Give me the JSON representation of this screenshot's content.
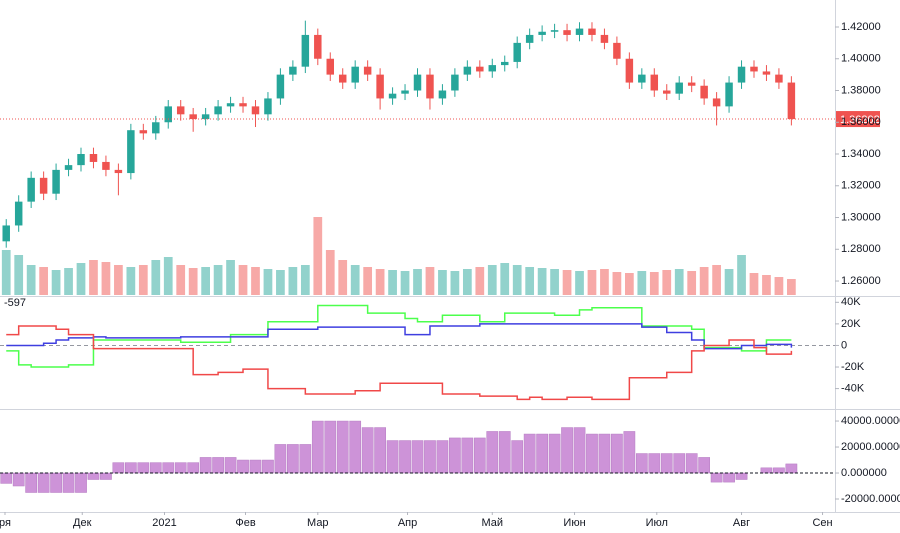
{
  "chart_data": [
    {
      "type": "candlestick",
      "open": [
        1.285,
        1.295,
        1.31,
        1.325,
        1.315,
        1.33,
        1.333,
        1.34,
        1.335,
        1.33,
        1.328,
        1.355,
        1.353,
        1.36,
        1.37,
        1.365,
        1.362,
        1.365,
        1.37,
        1.372,
        1.37,
        1.365,
        1.375,
        1.39,
        1.395,
        1.415,
        1.4,
        1.39,
        1.385,
        1.395,
        1.39,
        1.375,
        1.378,
        1.38,
        1.39,
        1.375,
        1.38,
        1.39,
        1.395,
        1.392,
        1.396,
        1.398,
        1.41,
        1.415,
        1.417,
        1.418,
        1.415,
        1.419,
        1.415,
        1.41,
        1.4,
        1.385,
        1.39,
        1.38,
        1.378,
        1.385,
        1.383,
        1.375,
        1.37,
        1.385,
        1.395,
        1.392,
        1.39,
        1.385
      ],
      "high": [
        1.299,
        1.314,
        1.329,
        1.329,
        1.334,
        1.337,
        1.344,
        1.344,
        1.339,
        1.334,
        1.359,
        1.359,
        1.364,
        1.374,
        1.374,
        1.369,
        1.369,
        1.374,
        1.376,
        1.376,
        1.374,
        1.379,
        1.394,
        1.399,
        1.424,
        1.419,
        1.404,
        1.394,
        1.399,
        1.399,
        1.394,
        1.382,
        1.384,
        1.394,
        1.394,
        1.384,
        1.394,
        1.399,
        1.399,
        1.4,
        1.402,
        1.414,
        1.419,
        1.421,
        1.422,
        1.422,
        1.423,
        1.423,
        1.419,
        1.414,
        1.404,
        1.394,
        1.394,
        1.384,
        1.389,
        1.389,
        1.387,
        1.379,
        1.389,
        1.399,
        1.399,
        1.396,
        1.394,
        1.389
      ],
      "low": [
        1.281,
        1.291,
        1.306,
        1.311,
        1.311,
        1.326,
        1.329,
        1.331,
        1.326,
        1.314,
        1.324,
        1.349,
        1.349,
        1.356,
        1.361,
        1.354,
        1.358,
        1.361,
        1.366,
        1.366,
        1.357,
        1.361,
        1.371,
        1.386,
        1.391,
        1.396,
        1.386,
        1.381,
        1.381,
        1.386,
        1.368,
        1.371,
        1.374,
        1.376,
        1.368,
        1.371,
        1.376,
        1.386,
        1.388,
        1.388,
        1.392,
        1.394,
        1.406,
        1.411,
        1.413,
        1.411,
        1.411,
        1.411,
        1.406,
        1.396,
        1.381,
        1.381,
        1.376,
        1.374,
        1.374,
        1.379,
        1.371,
        1.358,
        1.366,
        1.381,
        1.388,
        1.386,
        1.381,
        1.358
      ],
      "close": [
        1.295,
        1.31,
        1.325,
        1.315,
        1.33,
        1.333,
        1.34,
        1.335,
        1.33,
        1.328,
        1.355,
        1.353,
        1.36,
        1.37,
        1.365,
        1.362,
        1.365,
        1.37,
        1.372,
        1.37,
        1.365,
        1.375,
        1.39,
        1.395,
        1.415,
        1.4,
        1.39,
        1.385,
        1.395,
        1.39,
        1.375,
        1.378,
        1.38,
        1.39,
        1.375,
        1.38,
        1.39,
        1.395,
        1.392,
        1.396,
        1.398,
        1.41,
        1.415,
        1.417,
        1.418,
        1.415,
        1.419,
        1.415,
        1.41,
        1.4,
        1.385,
        1.39,
        1.38,
        1.378,
        1.385,
        1.383,
        1.375,
        1.37,
        1.385,
        1.395,
        1.392,
        1.39,
        1.385,
        1.362
      ],
      "volume": [
        45,
        40,
        30,
        28,
        25,
        27,
        32,
        35,
        33,
        30,
        28,
        30,
        35,
        38,
        30,
        27,
        28,
        30,
        35,
        30,
        28,
        26,
        25,
        28,
        30,
        78,
        45,
        35,
        30,
        28,
        26,
        25,
        24,
        26,
        28,
        25,
        24,
        26,
        28,
        30,
        32,
        30,
        28,
        27,
        26,
        25,
        24,
        25,
        26,
        23,
        22,
        24,
        23,
        25,
        26,
        24,
        28,
        30,
        26,
        40,
        22,
        20,
        18,
        16
      ],
      "volume_lim": [
        0,
        100
      ],
      "up_color": "#26a69a",
      "down_color": "#ef5350",
      "last_price": 1.36202,
      "xlim": [
        0,
        67
      ],
      "xticks": [
        {
          "value": 0.4,
          "label": "ря"
        },
        {
          "value": 6.6,
          "label": "Дек"
        },
        {
          "value": 13.2,
          "label": "2021"
        },
        {
          "value": 19.7,
          "label": "Фев"
        },
        {
          "value": 25.5,
          "label": "Мар"
        },
        {
          "value": 32.7,
          "label": "Апр"
        },
        {
          "value": 39.5,
          "label": "Май"
        },
        {
          "value": 46.1,
          "label": "Июн"
        },
        {
          "value": 52.7,
          "label": "Июл"
        },
        {
          "value": 59.5,
          "label": "Авг"
        },
        {
          "value": 66.0,
          "label": "Сен"
        }
      ],
      "ylim": [
        1.2512,
        1.437
      ],
      "yticks": [
        {
          "value": 1.26,
          "label": "1.26000"
        },
        {
          "value": 1.28,
          "label": "1.28000"
        },
        {
          "value": 1.3,
          "label": "1.30000"
        },
        {
          "value": 1.32,
          "label": "1.32000"
        },
        {
          "value": 1.34,
          "label": "1.34000"
        },
        {
          "value": 1.36,
          "label": "1.36000"
        },
        {
          "value": 1.38,
          "label": "1.38000"
        },
        {
          "value": 1.4,
          "label": "1.40000"
        },
        {
          "value": 1.42,
          "label": "1.42000"
        }
      ]
    },
    {
      "type": "line",
      "annotation": "-597",
      "ylim": [
        -58000,
        44000
      ],
      "yticks": [
        {
          "value": 40000,
          "label": "40K"
        },
        {
          "value": 20000,
          "label": "20K"
        },
        0,
        {
          "value": -20000,
          "label": "-20K"
        },
        {
          "value": -40000,
          "label": "-40K"
        }
      ],
      "series": [
        {
          "color": "#4cff4c",
          "values": [
            -5000,
            -18000,
            -20000,
            -20000,
            -20000,
            -18000,
            -18000,
            5000,
            5000,
            5000,
            5000,
            5000,
            5000,
            5000,
            3000,
            3000,
            3000,
            3000,
            10000,
            10000,
            10000,
            22000,
            22000,
            22000,
            22000,
            37000,
            37000,
            37000,
            37000,
            30000,
            30000,
            30000,
            25000,
            22000,
            22000,
            28000,
            28000,
            28000,
            22000,
            22000,
            30000,
            30000,
            30000,
            30000,
            28000,
            28000,
            33000,
            35000,
            35000,
            35000,
            35000,
            18000,
            18000,
            18000,
            18000,
            15000,
            -2000,
            -2000,
            -2000,
            -5000,
            -5000,
            5000,
            5000,
            5000
          ]
        },
        {
          "color": "#3f3fe0",
          "values": [
            0,
            0,
            0,
            2000,
            5000,
            7000,
            7000,
            8000,
            7000,
            7000,
            7000,
            7000,
            7000,
            7000,
            8000,
            8000,
            8000,
            8000,
            8000,
            8000,
            8000,
            15000,
            15000,
            15000,
            15000,
            17000,
            17000,
            17000,
            17000,
            17000,
            17000,
            17000,
            10000,
            10000,
            18000,
            18000,
            18000,
            18000,
            20000,
            20000,
            20000,
            20000,
            20000,
            20000,
            20000,
            20000,
            20000,
            20000,
            20000,
            20000,
            20000,
            17000,
            17000,
            12000,
            12000,
            5000,
            -3000,
            -3000,
            -3000,
            0,
            0,
            1000,
            1000,
            -2000
          ]
        },
        {
          "color": "#f04848",
          "values": [
            10000,
            18000,
            18000,
            18000,
            15000,
            10000,
            10000,
            -3000,
            -3000,
            -3000,
            -3000,
            -3000,
            -3000,
            -3000,
            -3000,
            -27000,
            -27000,
            -25000,
            -25000,
            -22000,
            -22000,
            -40000,
            -40000,
            -40000,
            -45000,
            -45000,
            -45000,
            -45000,
            -42000,
            -42000,
            -35000,
            -35000,
            -35000,
            -35000,
            -35000,
            -45000,
            -45000,
            -45000,
            -47000,
            -47000,
            -47000,
            -50000,
            -48000,
            -50000,
            -50000,
            -48000,
            -48000,
            -50000,
            -50000,
            -50000,
            -30000,
            -30000,
            -30000,
            -25000,
            -25000,
            -5000,
            0,
            0,
            5000,
            5000,
            -2000,
            -8000,
            -8000,
            -5000
          ]
        }
      ]
    },
    {
      "type": "bar",
      "color": "#cd93d8",
      "ylim": [
        -30000,
        48500
      ],
      "yticks": [
        {
          "value": 40000,
          "label": "40000.000000"
        },
        {
          "value": 20000,
          "label": "20000.000000"
        },
        {
          "value": 0,
          "label": "0.000000"
        },
        {
          "value": -20000,
          "label": "-20000.000000"
        }
      ],
      "values": [
        -8000,
        -10000,
        -15000,
        -15000,
        -15000,
        -15000,
        -15000,
        -5000,
        -5000,
        8000,
        8000,
        8000,
        8000,
        8000,
        8000,
        8000,
        12000,
        12000,
        12000,
        10000,
        10000,
        10000,
        22000,
        22000,
        22000,
        40000,
        40000,
        40000,
        40000,
        35000,
        35000,
        25000,
        25000,
        25000,
        25000,
        25000,
        27000,
        27000,
        27000,
        32000,
        32000,
        25000,
        30000,
        30000,
        30000,
        35000,
        35000,
        30000,
        30000,
        30000,
        32000,
        15000,
        15000,
        15000,
        15000,
        15000,
        12000,
        -7000,
        -7000,
        -5000,
        0,
        4000,
        4000,
        7000
      ]
    }
  ]
}
